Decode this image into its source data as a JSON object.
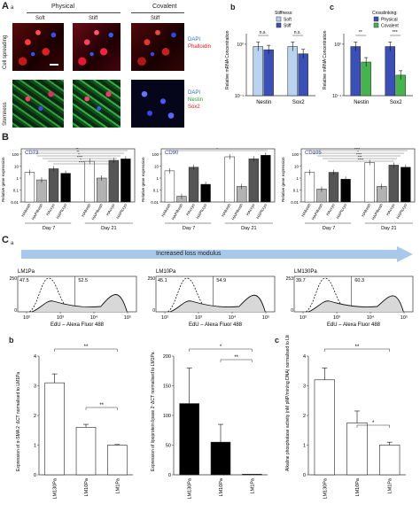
{
  "panel_A": {
    "letter": "A",
    "sub": "a",
    "group_physical": "Physical",
    "group_covalent": "Covalent",
    "col_soft": "Soft",
    "col_stiff": "Stiff",
    "col_stiff2": "Stiff",
    "row1_label": "Cell spreading",
    "row2_label": "Stemness",
    "stain1_dapi": "DAPI",
    "stain1_phalloidin": "Phalloidin",
    "stain2_dapi": "DAPI",
    "stain2_nestin": "Nestin",
    "stain2_sox2": "Sox2"
  },
  "panel_Ab": {
    "letter": "b",
    "legend_title": "Stiffness:",
    "legend": [
      "Soft",
      "Stiff"
    ],
    "ylabel": "Relative mRNA Concentration",
    "yticks": [
      "10⁰",
      "10⁻¹"
    ],
    "categories": [
      "Nestin",
      "Sox2"
    ],
    "sig": [
      "n.s.",
      "n.s."
    ]
  },
  "panel_Ac": {
    "letter": "c",
    "legend_title": "Crosslinking:",
    "legend": [
      "Physical",
      "Covalent"
    ],
    "ylabel": "Relative mRNA Concentration",
    "yticks": [
      "10⁰",
      "10⁻¹"
    ],
    "categories": [
      "Nestin",
      "Sox2"
    ],
    "sig": [
      "**",
      "***"
    ]
  },
  "panel_B": {
    "letter": "B",
    "ylabel": "Relative gene expression",
    "yticks": [
      "100",
      "10",
      "1",
      "0.1",
      "0.01"
    ],
    "xcats": [
      "HA",
      "HAPI",
      "HA",
      "HAPI"
    ],
    "xsubs": [
      "fresh",
      "fresh",
      "cryo",
      "cryo"
    ],
    "days": [
      "Day 7",
      "Day 21"
    ],
    "charts": [
      {
        "title": "CD73",
        "sig": [
          "**",
          "**",
          "*",
          "****",
          "*",
          "****"
        ]
      },
      {
        "title": "CD90",
        "sig": [
          "*"
        ]
      },
      {
        "title": "CD105",
        "sig": [
          "****",
          "*",
          "****",
          "***",
          "****"
        ]
      }
    ]
  },
  "panel_C": {
    "letter": "C",
    "sub": "a",
    "arrow_label": "Increased loss modulus",
    "flow": [
      {
        "title": "LM1Pa",
        "left": "47.5",
        "right": "52.5",
        "ymax": "250"
      },
      {
        "title": "LM10Pa",
        "left": "45.1",
        "right": "54.9",
        "ymax": "250"
      },
      {
        "title": "LM130Pa",
        "left": "39.7",
        "right": "60.3",
        "ymax": "253"
      }
    ],
    "xticks": [
      "10²",
      "10³",
      "10⁴",
      "10⁵"
    ],
    "xlabel": "EdU – Alexa Fluor 488",
    "y0": "0"
  },
  "panel_Cb": {
    "letter": "b",
    "left_ylabel": "Expression of α-SMA 2⁻ΔCT normalised to LM1Pa",
    "right_ylabel": "Expression of lipoprotein lipase 2⁻ΔCT normalised to LM1Pa",
    "left_yticks": [
      "4",
      "3",
      "2",
      "1",
      "0"
    ],
    "right_yticks": [
      "200",
      "150",
      "100",
      "50",
      "0"
    ],
    "categories": [
      "LM130Pa",
      "LM10Pa",
      "LM1Pa"
    ],
    "left_sig": [
      "**",
      "**"
    ],
    "right_sig": [
      "*",
      "**"
    ]
  },
  "panel_Cc": {
    "letter": "c",
    "ylabel": "Alkaline phosphatase activity (nM pNP/min/ng DNA) normalised to LM1Pa",
    "yticks": [
      "4",
      "3",
      "2",
      "1",
      "0"
    ],
    "categories": [
      "LM130Pa",
      "LM10Pa",
      "LM1Pa"
    ],
    "sig": [
      "**",
      "*"
    ]
  },
  "chart_data": [
    {
      "type": "bar",
      "categories": [
        "Nestin",
        "Sox2"
      ],
      "series": [
        {
          "name": "Soft",
          "values": [
            0.9,
            0.9
          ]
        },
        {
          "name": "Stiff",
          "values": [
            0.78,
            0.65
          ]
        }
      ],
      "ylabel": "Relative mRNA Concentration",
      "ylim": [
        0.1,
        1.6
      ],
      "log": true,
      "colors": [
        "#b8d4f0",
        "#3b4fb8"
      ]
    },
    {
      "type": "bar",
      "categories": [
        "Nestin",
        "Sox2"
      ],
      "series": [
        {
          "name": "Physical",
          "values": [
            0.9,
            0.9
          ]
        },
        {
          "name": "Covalent",
          "values": [
            0.45,
            0.25
          ]
        }
      ],
      "ylabel": "Relative mRNA Concentration",
      "ylim": [
        0.1,
        1.6
      ],
      "log": true,
      "colors": [
        "#3b4fb8",
        "#44b54a"
      ]
    },
    {
      "type": "bar",
      "title": "CD73",
      "categories": [
        "HAfresh D7",
        "HAPIfresh D7",
        "HAcryo D7",
        "HAPIcryo D7",
        "HAfresh D21",
        "HAPIfresh D21",
        "HAcryo D21",
        "HAPIcryo D21"
      ],
      "values": [
        3,
        0.7,
        6,
        2.5,
        25,
        1,
        30,
        40
      ],
      "ylabel": "Relative gene expression",
      "ylim": [
        0.01,
        100
      ],
      "log": true
    },
    {
      "type": "bar",
      "title": "CD90",
      "categories": [
        "HAfresh D7",
        "HAPIfresh D7",
        "HAcryo D7",
        "HAPIcryo D7",
        "HAfresh D21",
        "HAPIfresh D21",
        "HAcryo D21",
        "HAPIcryo D21"
      ],
      "values": [
        4,
        0.03,
        8,
        0.3,
        60,
        0.2,
        40,
        80
      ],
      "ylabel": "Relative gene expression",
      "ylim": [
        0.01,
        100
      ],
      "log": true
    },
    {
      "type": "bar",
      "title": "CD105",
      "categories": [
        "HAfresh D7",
        "HAPIfresh D7",
        "HAcryo D7",
        "HAPIcryo D7",
        "HAfresh D21",
        "HAPIfresh D21",
        "HAcryo D21",
        "HAPIcryo D21"
      ],
      "values": [
        3,
        0.12,
        3,
        0.8,
        20,
        0.2,
        12,
        8
      ],
      "ylabel": "Relative gene expression",
      "ylim": [
        0.01,
        100
      ],
      "log": true
    },
    {
      "type": "bar",
      "categories": [
        "LM130Pa",
        "LM10Pa",
        "LM1Pa"
      ],
      "values": [
        3.1,
        1.6,
        1.0
      ],
      "errors": [
        0.3,
        0.1,
        0.02
      ],
      "ylabel": "Expression of α-SMA 2⁻ΔCT normalised to LM1Pa",
      "ylim": [
        0,
        4
      ],
      "color": "#ffffff"
    },
    {
      "type": "bar",
      "categories": [
        "LM130Pa",
        "LM10Pa",
        "LM1Pa"
      ],
      "values": [
        120,
        55,
        1
      ],
      "errors": [
        60,
        30,
        0
      ],
      "ylabel": "Expression of lipoprotein lipase 2⁻ΔCT normalised to LM1Pa",
      "ylim": [
        0,
        200
      ],
      "color": "#000000"
    },
    {
      "type": "bar",
      "categories": [
        "LM130Pa",
        "LM10Pa",
        "LM1Pa"
      ],
      "values": [
        3.2,
        1.75,
        1.0
      ],
      "errors": [
        0.4,
        0.4,
        0.1
      ],
      "ylabel": "Alkaline phosphatase activity (nM pNP/min/ng DNA) normalised to LM1Pa",
      "ylim": [
        0,
        4
      ],
      "color": "#ffffff"
    }
  ],
  "colors": {
    "soft": "#b8d4f0",
    "stiff": "#3b4fb8",
    "physical": "#3b4fb8",
    "covalent": "#44b54a",
    "chart_title": "#2a3aa8",
    "arrow": "#a9c9ea",
    "phalloidin": "#e02020",
    "dapi": "#2a6fd0",
    "nestin": "#2a9a3a"
  }
}
